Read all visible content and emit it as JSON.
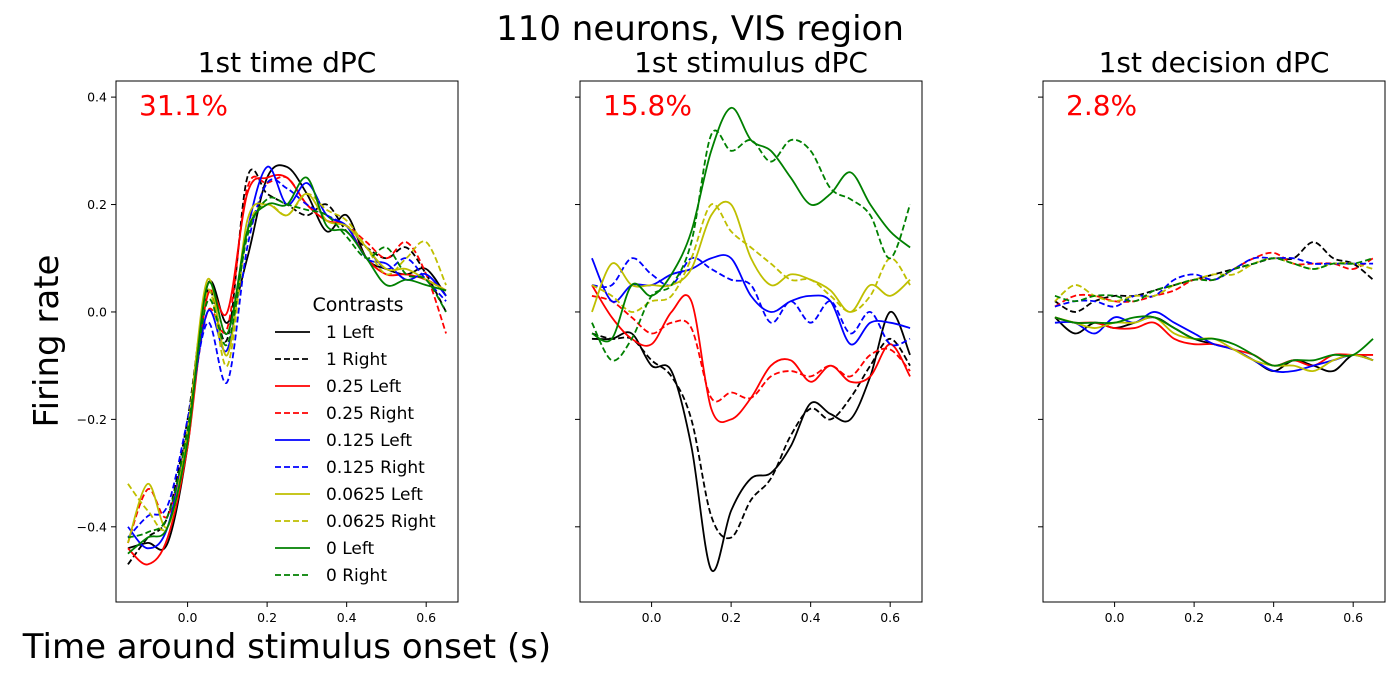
{
  "figure": {
    "suptitle": "110 neurons, VIS region",
    "xlabel": "Time around stimulus onset (s)",
    "ylabel": "Firing rate",
    "legend_title": "Contrasts",
    "legend_position": "lower-right of first panel"
  },
  "chart_data": [
    {
      "type": "line",
      "title": "1st time dPC",
      "annotation": "31.1%",
      "annotation_color": "#ff0000",
      "xlim": [
        -0.18,
        0.68
      ],
      "ylim": [
        -0.54,
        0.43
      ],
      "x_ticks": [
        0.0,
        0.2,
        0.4,
        0.6
      ],
      "x_tick_labels": [
        "0.0",
        "0.2",
        "0.4",
        "0.6"
      ],
      "y_ticks": [
        0.4,
        0.2,
        0.0,
        -0.2,
        -0.4
      ],
      "y_tick_labels": [
        "0.4",
        "0.2",
        "0.0",
        "−0.2",
        "−0.4"
      ],
      "grid": false,
      "x": [
        -0.15,
        -0.1,
        -0.05,
        0.0,
        0.05,
        0.1,
        0.15,
        0.2,
        0.25,
        0.3,
        0.35,
        0.4,
        0.45,
        0.5,
        0.55,
        0.6,
        0.65
      ],
      "series": [
        {
          "name": "1 Left",
          "color": "#000000",
          "dash": false,
          "values": [
            -0.44,
            -0.43,
            -0.43,
            -0.25,
            0.05,
            -0.02,
            0.1,
            0.25,
            0.27,
            0.22,
            0.15,
            0.18,
            0.1,
            0.08,
            0.07,
            0.08,
            0.03
          ]
        },
        {
          "name": "1 Right",
          "color": "#000000",
          "dash": true,
          "values": [
            -0.47,
            -0.42,
            -0.38,
            -0.2,
            0.04,
            -0.05,
            0.25,
            0.22,
            0.2,
            0.18,
            0.2,
            0.15,
            0.12,
            0.1,
            0.12,
            0.07,
            0.0
          ]
        },
        {
          "name": "0.25 Left",
          "color": "#ff0000",
          "dash": false,
          "values": [
            -0.44,
            -0.47,
            -0.42,
            -0.25,
            0.03,
            0.0,
            0.22,
            0.25,
            0.25,
            0.2,
            0.17,
            0.16,
            0.1,
            0.07,
            0.07,
            0.06,
            0.04
          ]
        },
        {
          "name": "0.25 Right",
          "color": "#ff0000",
          "dash": true,
          "values": [
            -0.43,
            -0.33,
            -0.38,
            -0.22,
            0.0,
            -0.03,
            0.23,
            0.24,
            0.25,
            0.2,
            0.17,
            0.16,
            0.13,
            0.1,
            0.13,
            0.07,
            -0.04
          ]
        },
        {
          "name": "0.125 Left",
          "color": "#0000ff",
          "dash": false,
          "values": [
            -0.4,
            -0.44,
            -0.4,
            -0.22,
            0.0,
            -0.07,
            0.15,
            0.27,
            0.2,
            0.24,
            0.18,
            0.16,
            0.1,
            0.09,
            0.06,
            0.07,
            0.03
          ]
        },
        {
          "name": "0.125 Right",
          "color": "#0000ff",
          "dash": true,
          "values": [
            -0.42,
            -0.38,
            -0.36,
            -0.2,
            -0.02,
            -0.13,
            0.12,
            0.24,
            0.23,
            0.2,
            0.18,
            0.16,
            0.12,
            0.08,
            0.1,
            0.06,
            0.02
          ]
        },
        {
          "name": "0.0625 Left",
          "color": "#bfbf00",
          "dash": false,
          "values": [
            -0.43,
            -0.32,
            -0.4,
            -0.22,
            0.06,
            -0.08,
            0.17,
            0.2,
            0.18,
            0.22,
            0.17,
            0.16,
            0.12,
            0.08,
            0.08,
            0.06,
            0.04
          ]
        },
        {
          "name": "0.0625 Right",
          "color": "#bfbf00",
          "dash": true,
          "values": [
            -0.32,
            -0.37,
            -0.4,
            -0.24,
            0.04,
            -0.1,
            0.15,
            0.2,
            0.18,
            0.22,
            0.19,
            0.17,
            0.12,
            0.07,
            0.1,
            0.13,
            0.05
          ]
        },
        {
          "name": "0 Left",
          "color": "#008000",
          "dash": false,
          "values": [
            -0.45,
            -0.42,
            -0.4,
            -0.24,
            0.05,
            -0.04,
            0.15,
            0.2,
            0.2,
            0.25,
            0.16,
            0.15,
            0.1,
            0.05,
            0.06,
            0.05,
            0.04
          ]
        },
        {
          "name": "0 Right",
          "color": "#008000",
          "dash": true,
          "values": [
            -0.42,
            -0.41,
            -0.38,
            -0.22,
            0.02,
            -0.06,
            0.14,
            0.21,
            0.2,
            0.19,
            0.18,
            0.14,
            0.1,
            0.12,
            0.07,
            0.06,
            0.0
          ]
        }
      ]
    },
    {
      "type": "line",
      "title": "1st stimulus dPC",
      "annotation": "15.8%",
      "annotation_color": "#ff0000",
      "xlim": [
        -0.18,
        0.68
      ],
      "ylim": [
        -0.54,
        0.43
      ],
      "x_ticks": [
        0.0,
        0.2,
        0.4,
        0.6
      ],
      "x_tick_labels": [
        "0.0",
        "0.2",
        "0.4",
        "0.6"
      ],
      "y_ticks": [
        0.4,
        0.2,
        0.0,
        -0.2,
        -0.4
      ],
      "y_tick_labels": [],
      "grid": false,
      "x": [
        -0.15,
        -0.1,
        -0.05,
        0.0,
        0.05,
        0.1,
        0.15,
        0.2,
        0.25,
        0.3,
        0.35,
        0.4,
        0.45,
        0.5,
        0.55,
        0.6,
        0.65
      ],
      "series": [
        {
          "name": "1 Left",
          "color": "#000000",
          "dash": false,
          "values": [
            -0.05,
            -0.05,
            -0.04,
            -0.1,
            -0.11,
            -0.25,
            -0.48,
            -0.37,
            -0.31,
            -0.3,
            -0.25,
            -0.17,
            -0.19,
            -0.2,
            -0.12,
            0.0,
            -0.08
          ]
        },
        {
          "name": "1 Right",
          "color": "#000000",
          "dash": true,
          "values": [
            -0.04,
            -0.05,
            -0.05,
            -0.09,
            -0.12,
            -0.2,
            -0.38,
            -0.42,
            -0.35,
            -0.31,
            -0.23,
            -0.18,
            -0.2,
            -0.16,
            -0.1,
            -0.05,
            -0.1
          ]
        },
        {
          "name": "0.25 Left",
          "color": "#ff0000",
          "dash": false,
          "values": [
            0.05,
            -0.01,
            -0.05,
            -0.06,
            0.0,
            0.02,
            -0.18,
            -0.2,
            -0.16,
            -0.1,
            -0.09,
            -0.13,
            -0.1,
            -0.13,
            -0.12,
            -0.06,
            -0.12
          ]
        },
        {
          "name": "0.25 Right",
          "color": "#ff0000",
          "dash": true,
          "values": [
            0.03,
            0.02,
            -0.01,
            -0.04,
            -0.02,
            -0.03,
            -0.16,
            -0.15,
            -0.16,
            -0.12,
            -0.11,
            -0.12,
            -0.1,
            -0.12,
            -0.08,
            -0.07,
            -0.11
          ]
        },
        {
          "name": "0.125 Left",
          "color": "#0000ff",
          "dash": false,
          "values": [
            0.1,
            0.02,
            0.05,
            0.05,
            0.07,
            0.08,
            0.1,
            0.1,
            0.03,
            0.0,
            0.02,
            0.03,
            0.02,
            -0.06,
            -0.02,
            -0.02,
            -0.03
          ]
        },
        {
          "name": "0.125 Right",
          "color": "#0000ff",
          "dash": true,
          "values": [
            0.05,
            0.05,
            0.1,
            0.07,
            0.05,
            0.1,
            0.08,
            0.06,
            0.05,
            -0.02,
            0.02,
            -0.02,
            0.02,
            -0.04,
            0.0,
            -0.06,
            -0.05
          ]
        },
        {
          "name": "0.0625 Left",
          "color": "#bfbf00",
          "dash": false,
          "values": [
            0.0,
            0.09,
            0.05,
            0.05,
            0.05,
            0.08,
            0.18,
            0.2,
            0.1,
            0.05,
            0.07,
            0.06,
            0.04,
            0.0,
            0.05,
            0.03,
            0.06
          ]
        },
        {
          "name": "0.0625 Right",
          "color": "#bfbf00",
          "dash": true,
          "values": [
            0.05,
            0.03,
            0.0,
            0.02,
            0.03,
            0.1,
            0.2,
            0.15,
            0.12,
            0.09,
            0.06,
            0.06,
            0.03,
            0.0,
            0.03,
            0.1,
            0.05
          ]
        },
        {
          "name": "0 Left",
          "color": "#008000",
          "dash": false,
          "values": [
            -0.04,
            -0.05,
            0.05,
            0.03,
            0.07,
            0.15,
            0.3,
            0.38,
            0.32,
            0.3,
            0.25,
            0.2,
            0.22,
            0.26,
            0.2,
            0.15,
            0.12
          ]
        },
        {
          "name": "0 Right",
          "color": "#008000",
          "dash": true,
          "values": [
            -0.02,
            -0.09,
            -0.05,
            0.03,
            0.05,
            0.13,
            0.33,
            0.3,
            0.32,
            0.28,
            0.32,
            0.3,
            0.23,
            0.21,
            0.18,
            0.1,
            0.2
          ]
        }
      ]
    },
    {
      "type": "line",
      "title": "1st decision dPC",
      "annotation": "2.8%",
      "annotation_color": "#ff0000",
      "xlim": [
        -0.18,
        0.68
      ],
      "ylim": [
        -0.54,
        0.43
      ],
      "x_ticks": [
        0.0,
        0.2,
        0.4,
        0.6
      ],
      "x_tick_labels": [
        "0.0",
        "0.2",
        "0.4",
        "0.6"
      ],
      "y_ticks": [
        0.4,
        0.2,
        0.0,
        -0.2,
        -0.4
      ],
      "y_tick_labels": [],
      "grid": false,
      "x": [
        -0.15,
        -0.1,
        -0.05,
        0.0,
        0.05,
        0.1,
        0.15,
        0.2,
        0.25,
        0.3,
        0.35,
        0.4,
        0.45,
        0.5,
        0.55,
        0.6,
        0.65
      ],
      "series": [
        {
          "name": "1 Left",
          "color": "#000000",
          "dash": false,
          "values": [
            -0.01,
            -0.04,
            -0.02,
            -0.03,
            -0.02,
            -0.01,
            -0.03,
            -0.05,
            -0.06,
            -0.07,
            -0.09,
            -0.11,
            -0.09,
            -0.1,
            -0.11,
            -0.08,
            -0.09
          ]
        },
        {
          "name": "1 Right",
          "color": "#000000",
          "dash": true,
          "values": [
            0.02,
            0.0,
            0.02,
            0.03,
            0.03,
            0.04,
            0.05,
            0.06,
            0.07,
            0.08,
            0.09,
            0.1,
            0.1,
            0.13,
            0.1,
            0.09,
            0.06
          ]
        },
        {
          "name": "0.25 Left",
          "color": "#ff0000",
          "dash": false,
          "values": [
            -0.01,
            -0.02,
            -0.02,
            -0.03,
            -0.03,
            -0.02,
            -0.05,
            -0.06,
            -0.06,
            -0.07,
            -0.08,
            -0.1,
            -0.09,
            -0.1,
            -0.08,
            -0.08,
            -0.08
          ]
        },
        {
          "name": "0.25 Right",
          "color": "#ff0000",
          "dash": true,
          "values": [
            0.01,
            0.03,
            0.03,
            0.02,
            0.02,
            0.03,
            0.04,
            0.06,
            0.06,
            0.08,
            0.1,
            0.11,
            0.09,
            0.09,
            0.09,
            0.08,
            0.1
          ]
        },
        {
          "name": "0.125 Left",
          "color": "#0000ff",
          "dash": false,
          "values": [
            -0.02,
            -0.02,
            -0.04,
            -0.01,
            -0.02,
            0.0,
            -0.02,
            -0.04,
            -0.06,
            -0.07,
            -0.09,
            -0.11,
            -0.11,
            -0.1,
            -0.09,
            -0.08,
            -0.09
          ]
        },
        {
          "name": "0.125 Right",
          "color": "#0000ff",
          "dash": true,
          "values": [
            0.01,
            0.02,
            0.02,
            0.01,
            0.03,
            0.03,
            0.06,
            0.07,
            0.06,
            0.08,
            0.1,
            0.1,
            0.1,
            0.09,
            0.09,
            0.09,
            0.09
          ]
        },
        {
          "name": "0.0625 Left",
          "color": "#bfbf00",
          "dash": false,
          "values": [
            -0.01,
            -0.02,
            -0.03,
            -0.02,
            -0.02,
            -0.01,
            -0.04,
            -0.05,
            -0.05,
            -0.07,
            -0.09,
            -0.1,
            -0.1,
            -0.11,
            -0.09,
            -0.08,
            -0.09
          ]
        },
        {
          "name": "0.0625 Right",
          "color": "#bfbf00",
          "dash": true,
          "values": [
            0.02,
            0.05,
            0.03,
            0.02,
            0.03,
            0.03,
            0.05,
            0.06,
            0.07,
            0.07,
            0.09,
            0.1,
            0.09,
            0.08,
            0.09,
            0.09,
            0.08
          ]
        },
        {
          "name": "0 Left",
          "color": "#008000",
          "dash": false,
          "values": [
            -0.01,
            -0.02,
            -0.02,
            -0.02,
            -0.01,
            -0.01,
            -0.03,
            -0.05,
            -0.05,
            -0.06,
            -0.08,
            -0.1,
            -0.09,
            -0.09,
            -0.08,
            -0.08,
            -0.05
          ]
        },
        {
          "name": "0 Right",
          "color": "#008000",
          "dash": true,
          "values": [
            0.03,
            0.02,
            0.03,
            0.03,
            0.02,
            0.04,
            0.05,
            0.06,
            0.06,
            0.08,
            0.09,
            0.1,
            0.09,
            0.08,
            0.09,
            0.09,
            0.1
          ]
        }
      ]
    }
  ]
}
